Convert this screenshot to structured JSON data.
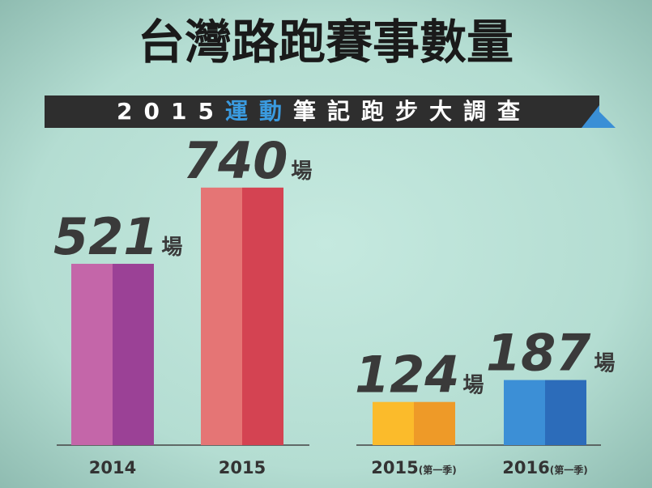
{
  "chart_data": {
    "type": "bar",
    "title": "台灣路跑賽事數量",
    "subtitle_parts": [
      {
        "text": "2015",
        "color": "#ffffff"
      },
      {
        "text": "運動",
        "color": "#3a9be0"
      },
      {
        "text": "筆記跑步大調查",
        "color": "#ffffff"
      }
    ],
    "categories": [
      "2014",
      "2015",
      "2015",
      "2016"
    ],
    "category_notes": [
      null,
      null,
      "(第一季)",
      "(第一季)"
    ],
    "values": [
      521,
      740,
      124,
      187
    ],
    "unit": "場",
    "colors": [
      [
        "#c466a9",
        "#9b4196"
      ],
      [
        "#e57575",
        "#d44352"
      ],
      [
        "#fbbb2b",
        "#ee9a28"
      ],
      [
        "#3c8fd6",
        "#2c6cba"
      ]
    ]
  }
}
